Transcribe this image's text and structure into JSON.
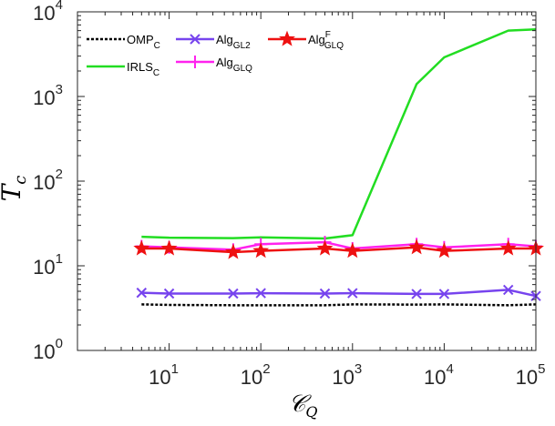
{
  "chart_data": {
    "type": "line",
    "title": "",
    "xlabel": "𝒞",
    "xlabel_sub": "Q",
    "ylabel": "T",
    "ylabel_sub": "c",
    "x_scale": "log",
    "y_scale": "log",
    "xlim": [
      1,
      100000
    ],
    "ylim": [
      1,
      10000
    ],
    "x_ticks": [
      {
        "value": 10,
        "base": "10",
        "exp": "1"
      },
      {
        "value": 100,
        "base": "10",
        "exp": "2"
      },
      {
        "value": 1000,
        "base": "10",
        "exp": "3"
      },
      {
        "value": 10000,
        "base": "10",
        "exp": "4"
      },
      {
        "value": 100000,
        "base": "10",
        "exp": "5"
      }
    ],
    "y_ticks": [
      {
        "value": 1,
        "base": "10",
        "exp": "0"
      },
      {
        "value": 10,
        "base": "10",
        "exp": "1"
      },
      {
        "value": 100,
        "base": "10",
        "exp": "2"
      },
      {
        "value": 1000,
        "base": "10",
        "exp": "3"
      },
      {
        "value": 10000,
        "base": "10",
        "exp": "4"
      }
    ],
    "x": [
      5,
      10,
      50,
      100,
      500,
      1000,
      5000,
      10000,
      50000,
      100000
    ],
    "series": [
      {
        "name": "OMP",
        "sub": "C",
        "sup": "",
        "color": "#000000",
        "dash": "3,2",
        "width": 2.5,
        "marker": "none",
        "values": [
          3.5,
          3.45,
          3.42,
          3.42,
          3.42,
          3.5,
          3.48,
          3.5,
          3.42,
          3.5
        ]
      },
      {
        "name": "IRLS",
        "sub": "C",
        "sup": "",
        "color": "#22dd22",
        "dash": "",
        "width": 2.5,
        "marker": "none",
        "values": [
          22,
          21.5,
          21.2,
          21.7,
          21,
          23,
          1400,
          2900,
          6000,
          6200
        ]
      },
      {
        "name": "Alg",
        "sub": "GL2",
        "sup": "",
        "color": "#7744ee",
        "dash": "",
        "width": 2.5,
        "marker": "x",
        "values": [
          4.8,
          4.7,
          4.7,
          4.75,
          4.7,
          4.75,
          4.65,
          4.65,
          5.2,
          4.4
        ]
      },
      {
        "name": "Alg",
        "sub": "GLQ",
        "sup": "",
        "color": "#ff22ee",
        "dash": "",
        "width": 2.5,
        "marker": "plus",
        "values": [
          17,
          16.5,
          15.5,
          18,
          19,
          16,
          18,
          16.5,
          18,
          17
        ]
      },
      {
        "name": "Alg",
        "sub": "GLQ",
        "sup": "F",
        "color": "#ee1111",
        "dash": "",
        "width": 2.5,
        "marker": "star",
        "values": [
          16,
          16,
          14.5,
          15,
          16,
          15,
          16.5,
          15,
          16,
          16
        ]
      }
    ],
    "legend": "top-left",
    "grid": false
  }
}
